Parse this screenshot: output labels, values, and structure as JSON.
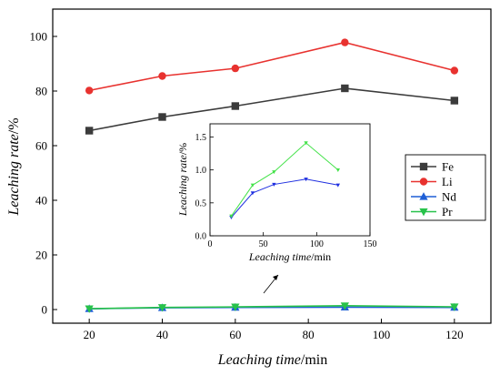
{
  "chart_data": [
    {
      "id": "main",
      "type": "line",
      "xlabel_italic": "Leaching time",
      "xlabel_unit": "/min",
      "ylabel_italic": "Leaching rate",
      "ylabel_unit": "/%",
      "xlim": [
        10,
        130
      ],
      "ylim": [
        -5,
        110
      ],
      "xticks": [
        20,
        40,
        60,
        80,
        100,
        120
      ],
      "yticks": [
        0,
        20,
        40,
        60,
        80,
        100
      ],
      "x": [
        20,
        40,
        60,
        90,
        120
      ],
      "series": [
        {
          "name": "Fe",
          "color": "#3b3b3b",
          "marker": "square",
          "values": [
            65.5,
            70.5,
            74.5,
            81,
            76.5
          ]
        },
        {
          "name": "Li",
          "color": "#e8322f",
          "marker": "circle",
          "values": [
            80.2,
            85.5,
            88.3,
            97.8,
            87.5
          ]
        },
        {
          "name": "Nd",
          "color": "#1f5fd6",
          "marker": "triangle-up",
          "values": [
            0.28,
            0.65,
            0.78,
            0.86,
            0.77
          ]
        },
        {
          "name": "Pr",
          "color": "#27c24a",
          "marker": "triangle-down",
          "values": [
            0.3,
            0.77,
            0.97,
            1.41,
            1.0
          ]
        }
      ],
      "legend_position": "right"
    },
    {
      "id": "inset",
      "type": "line",
      "xlabel_italic": "Leaching time",
      "xlabel_unit": "/min",
      "ylabel_italic": "Leaching rate",
      "ylabel_unit": "/%",
      "xlim": [
        0,
        150
      ],
      "ylim": [
        0,
        1.7
      ],
      "xticks": [
        0,
        50,
        100,
        150
      ],
      "yticks": [
        "0.0",
        "0.5",
        "1.0",
        "1.5"
      ],
      "x": [
        20,
        40,
        60,
        90,
        120
      ],
      "series": [
        {
          "name": "Nd",
          "color": "#1f2fe0",
          "marker": "triangle-down",
          "values": [
            0.28,
            0.65,
            0.78,
            0.86,
            0.77
          ]
        },
        {
          "name": "Pr",
          "color": "#44e24a",
          "marker": "triangle-down",
          "values": [
            0.3,
            0.77,
            0.97,
            1.41,
            1.0
          ]
        }
      ]
    }
  ]
}
